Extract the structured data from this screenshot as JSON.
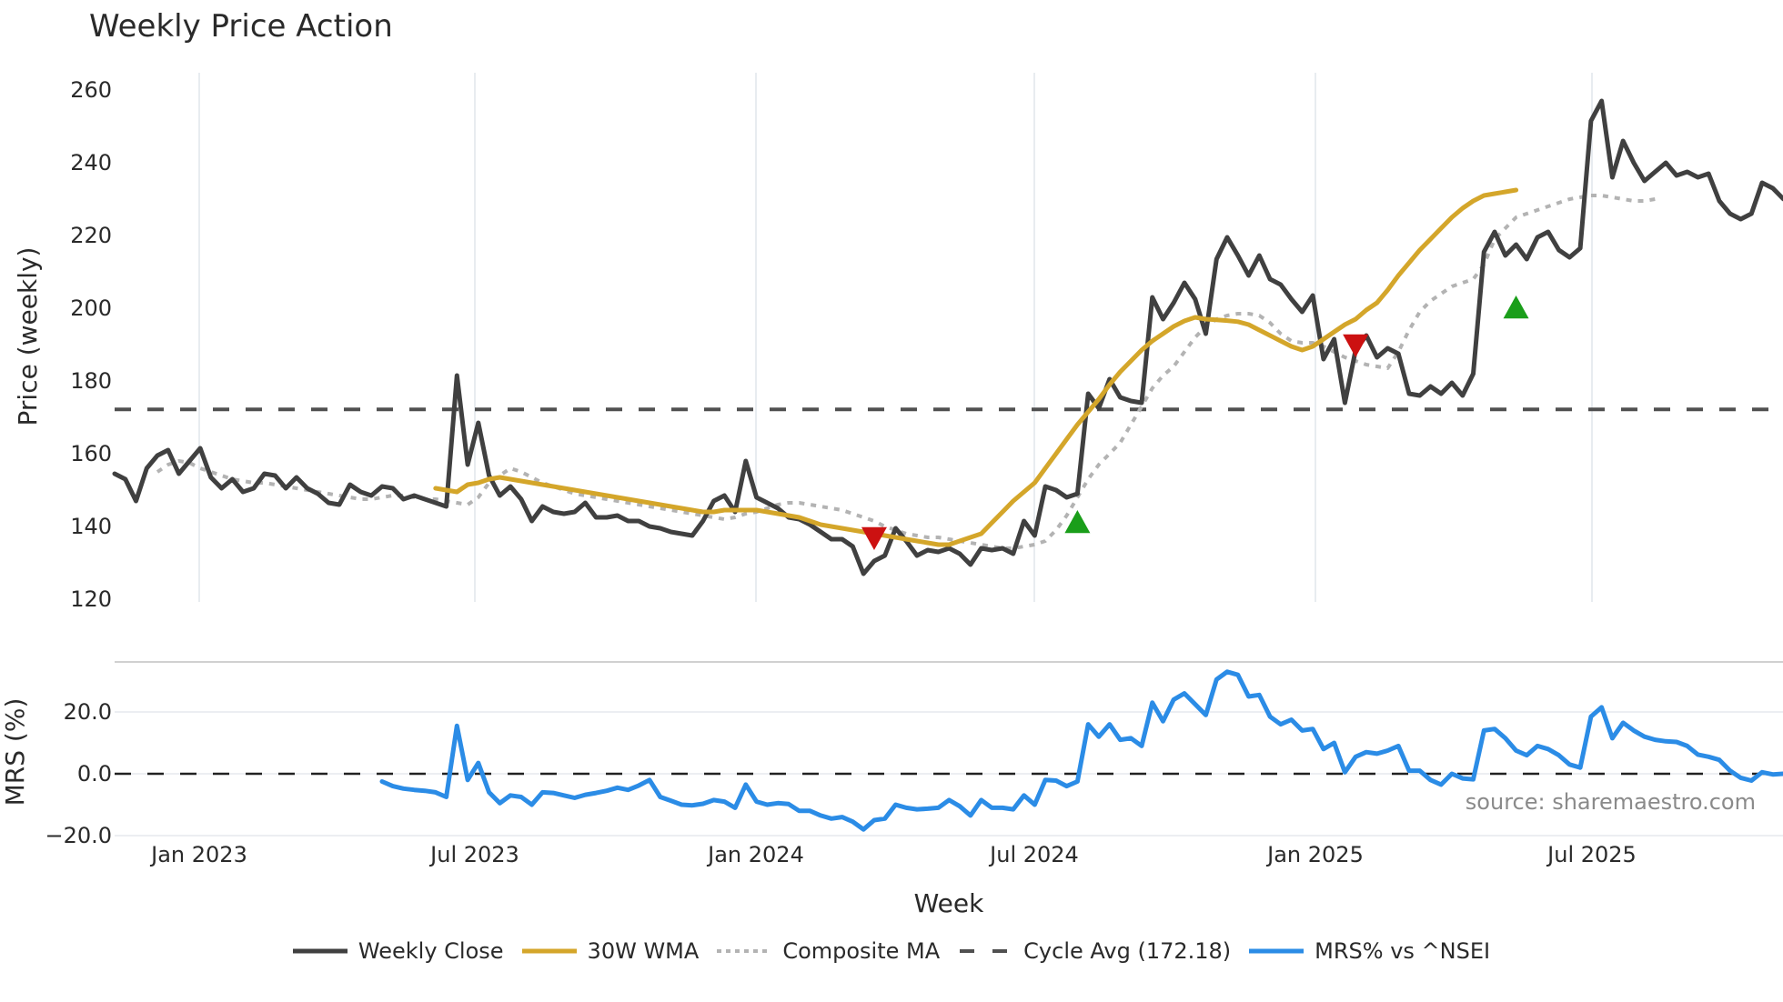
{
  "title": "Weekly Price Action",
  "source_note": "source: sharemaestro.com",
  "x_axis": {
    "label": "Week",
    "ticks": [
      "Jan 2023",
      "Jul 2023",
      "Jan 2024",
      "Jul 2024",
      "Jan 2025",
      "Jul 2025"
    ]
  },
  "price_axis": {
    "label": "Price (weekly)",
    "ticks": [
      "120",
      "140",
      "160",
      "180",
      "200",
      "220",
      "240",
      "260"
    ]
  },
  "mrs_axis": {
    "label": "MRS (%)",
    "ticks": [
      "−20.0",
      "0.0",
      "20.0"
    ]
  },
  "legend": {
    "items": [
      {
        "label": "Weekly Close",
        "color": "#404040",
        "style": "solid"
      },
      {
        "label": "30W WMA",
        "color": "#d4a62a",
        "style": "solid"
      },
      {
        "label": "Composite MA",
        "color": "#b3b3b3",
        "style": "dotted"
      },
      {
        "label": "Cycle Avg (172.18)",
        "color": "#505050",
        "style": "dashed"
      },
      {
        "label": "MRS% vs ^NSEI",
        "color": "#2b8ce6",
        "style": "solid"
      }
    ]
  },
  "colors": {
    "close": "#404040",
    "wma": "#d4a62a",
    "composite": "#b3b3b3",
    "cycle": "#505050",
    "mrs": "#2b8ce6",
    "buy_marker": "#1a9e1a",
    "sell_marker": "#cc1111",
    "grid": "#e8ecf0"
  },
  "chart_data": [
    {
      "type": "line",
      "title": "Weekly Price Action",
      "xlabel": "Week",
      "ylabel": "Price (weekly)",
      "ylim": [
        120,
        262
      ],
      "x_ticks": [
        "Jan 2023",
        "Jul 2023",
        "Jan 2024",
        "Jul 2024",
        "Jan 2025",
        "Jul 2025"
      ],
      "x_start_week_offset": -8,
      "grid": true,
      "legend_position": "bottom",
      "series": [
        {
          "name": "Weekly Close",
          "values": [
            154.5,
            153,
            147,
            156,
            159.5,
            161,
            154.5,
            158,
            161.5,
            153.5,
            150.5,
            153,
            149.5,
            150.5,
            154.5,
            154,
            150.5,
            153.5,
            150.5,
            149,
            146.5,
            146,
            151.5,
            149.5,
            148.5,
            151,
            150.5,
            147.5,
            148.5,
            147.5,
            146.5,
            145.5,
            181.5,
            157,
            168.5,
            154,
            148.5,
            151,
            147.5,
            141.5,
            145.5,
            144,
            143.5,
            144,
            146.5,
            142.5,
            142.5,
            143,
            141.5,
            141.5,
            140,
            139.5,
            138.5,
            138,
            137.5,
            141.5,
            147,
            148.5,
            144,
            158,
            148,
            146.5,
            145,
            142.5,
            142,
            140.5,
            138.5,
            136.5,
            136.5,
            134.5,
            127,
            130.5,
            132,
            139.5,
            136,
            132,
            133.5,
            133,
            134,
            132.5,
            129.5,
            134,
            133.5,
            134,
            132.5,
            141.5,
            137.5,
            151,
            150,
            148,
            149,
            176.5,
            172.5,
            180.5,
            175.5,
            174.5,
            174,
            203,
            197,
            201.5,
            207,
            202.5,
            193,
            213.5,
            219.5,
            214.5,
            209,
            214.5,
            208,
            206.5,
            202.5,
            199,
            203.5,
            186,
            191.5,
            174,
            188.5,
            192.5,
            186.5,
            189,
            187.5,
            176.5,
            176,
            178.5,
            176.5,
            179.5,
            176,
            182,
            215.5,
            221,
            214.5,
            217.5,
            213.5,
            219.5,
            221,
            216,
            214,
            216.5,
            251.5,
            257,
            236,
            246,
            240,
            235,
            237.5,
            240,
            236.5,
            237.5,
            236,
            237,
            229.5,
            226,
            224.5,
            226,
            234.5,
            233,
            230
          ],
          "color": "#404040"
        },
        {
          "name": "30W WMA",
          "start_index": 30,
          "values": [
            150.5,
            150,
            149.5,
            151.5,
            152,
            153,
            153.5,
            153,
            152.5,
            152,
            151.5,
            151,
            150.5,
            150,
            149.5,
            149,
            148.5,
            148,
            147.5,
            147,
            146.5,
            146,
            145.5,
            145,
            144.5,
            144,
            144,
            144.5,
            144.5,
            144.5,
            144.5,
            144,
            143.5,
            143,
            142.5,
            141.5,
            140.5,
            140,
            139.5,
            139,
            138.5,
            138,
            137.5,
            137,
            136.5,
            136,
            135.5,
            135,
            135,
            136,
            137,
            138,
            141,
            144,
            147,
            149.5,
            152,
            156,
            160,
            164,
            168,
            171.5,
            175,
            179,
            182.5,
            185.5,
            188.5,
            191,
            193,
            195,
            196.5,
            197.5,
            197,
            196.8,
            196.6,
            196.3,
            195.5,
            194,
            192.5,
            191,
            189.5,
            188.5,
            189.5,
            191.5,
            193.5,
            195.5,
            197,
            199.5,
            201.5,
            205,
            209,
            212.5,
            216,
            219,
            222,
            225,
            227.5,
            229.5,
            231,
            231.5,
            232,
            232.5
          ],
          "color": "#d4a62a"
        },
        {
          "name": "Composite MA",
          "start_index": 4,
          "values": [
            155,
            157,
            158,
            157.5,
            156,
            155,
            154,
            153,
            152.5,
            152,
            152,
            151.5,
            151,
            150.5,
            150,
            149.5,
            149,
            148.5,
            148,
            147.5,
            147.5,
            148,
            148.5,
            148.5,
            148,
            147.5,
            147.5,
            147,
            146.5,
            146,
            148,
            152,
            154,
            156,
            155,
            153.5,
            152,
            151,
            150,
            149,
            148.5,
            148,
            147.5,
            147,
            146.5,
            146,
            145.5,
            145,
            144.5,
            144,
            143.5,
            143,
            142.5,
            142,
            142.5,
            143.5,
            144,
            145,
            146,
            146.5,
            146.5,
            146,
            145.5,
            145,
            144.5,
            143.5,
            142.5,
            141.5,
            140,
            139,
            138,
            137.5,
            137,
            137,
            136.5,
            136,
            135.5,
            135,
            134.5,
            134,
            134,
            134.5,
            135,
            136,
            139,
            143,
            148,
            153,
            157,
            160,
            163,
            168,
            173,
            178,
            181.5,
            184,
            188,
            192,
            195,
            197,
            198,
            198.5,
            198.5,
            198,
            196,
            193,
            191,
            190.5,
            190.5,
            189.5,
            188,
            186.5,
            185.5,
            184.5,
            184,
            183.5,
            188,
            194,
            199,
            202,
            204,
            206,
            207,
            208,
            212,
            219,
            222,
            225,
            226,
            227,
            228,
            229,
            230,
            230.5,
            231,
            231,
            230.5,
            230,
            229.5,
            229.5,
            230
          ],
          "color": "#b3b3b3"
        },
        {
          "name": "Cycle Avg (172.18)",
          "values": [
            172.18
          ],
          "color": "#505050",
          "style": "dashed"
        }
      ],
      "markers": [
        {
          "type": "sell",
          "shape": "triangle-down",
          "index": 71,
          "price": 137,
          "color": "#cc1111"
        },
        {
          "type": "buy",
          "shape": "triangle-up",
          "index": 90,
          "price": 141,
          "color": "#1a9e1a"
        },
        {
          "type": "sell",
          "shape": "triangle-down",
          "index": 116,
          "price": 190,
          "color": "#cc1111"
        },
        {
          "type": "buy",
          "shape": "triangle-up",
          "index": 131,
          "price": 200,
          "color": "#1a9e1a"
        }
      ]
    },
    {
      "type": "line",
      "title": "",
      "xlabel": "Week",
      "ylabel": "MRS (%)",
      "ylim": [
        -20,
        33
      ],
      "grid": true,
      "series": [
        {
          "name": "MRS% vs ^NSEI",
          "start_index": 25,
          "values": [
            -2.5,
            -4,
            -4.8,
            -5.2,
            -5.5,
            -6,
            -7.5,
            15.5,
            -2,
            3.5,
            -6,
            -9.5,
            -7,
            -7.5,
            -10,
            -6,
            -6.2,
            -7,
            -7.8,
            -6.8,
            -6.2,
            -5.5,
            -4.5,
            -5.2,
            -3.8,
            -2,
            -7.5,
            -8.7,
            -10,
            -10.2,
            -9.7,
            -8.5,
            -9,
            -11,
            -3.5,
            -9,
            -10,
            -9.5,
            -9.8,
            -12,
            -12,
            -13.5,
            -14.5,
            -14,
            -15.5,
            -18,
            -15,
            -14.5,
            -10,
            -11,
            -11.5,
            -11.3,
            -11,
            -8.5,
            -10.5,
            -13.5,
            -8.5,
            -11,
            -11,
            -11.5,
            -7,
            -10,
            -2,
            -2.2,
            -4,
            -2.5,
            16,
            12,
            16,
            11,
            11.5,
            9,
            23,
            17,
            24,
            26,
            22.5,
            19,
            30.5,
            33,
            32,
            25,
            25.5,
            18.5,
            16,
            17.5,
            14,
            14.5,
            8,
            10,
            0.5,
            5.5,
            7,
            6.5,
            7.5,
            9,
            1,
            1,
            -2,
            -3.5,
            0,
            -1.5,
            -1.8,
            14,
            14.5,
            11.5,
            7.5,
            6,
            9,
            8,
            6,
            3,
            2,
            18.5,
            21.5,
            11.5,
            16.5,
            14,
            12,
            11,
            10.5,
            10.3,
            9,
            6.2,
            5.5,
            4.5,
            1,
            -1.3,
            -2.2,
            0.5,
            -0.2,
            0
          ],
          "color": "#2b8ce6"
        },
        {
          "name": "Zero line",
          "values": [
            0
          ],
          "color": "#222222",
          "style": "dashed"
        }
      ]
    }
  ]
}
